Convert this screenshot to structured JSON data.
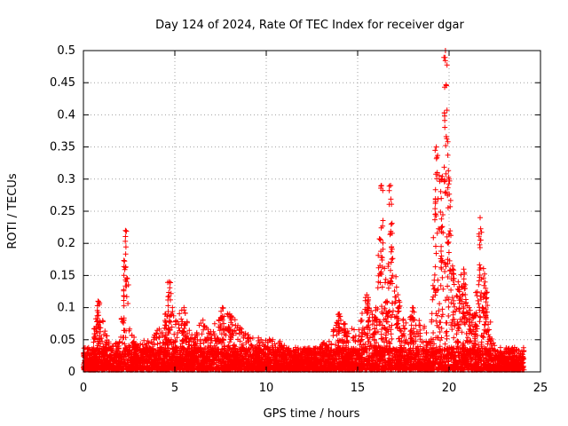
{
  "chart_data": {
    "type": "scatter",
    "title": "Day 124 of 2024, Rate Of TEC Index for receiver dgar",
    "xlabel": "GPS time / hours",
    "ylabel": "ROTI / TECUs",
    "xlim": [
      0,
      25
    ],
    "ylim": [
      0,
      0.5
    ],
    "xticks": [
      0,
      5,
      10,
      15,
      20,
      25
    ],
    "yticks": [
      0,
      0.05,
      0.1,
      0.15,
      0.2,
      0.25,
      0.3,
      0.35,
      0.4,
      0.45,
      0.5
    ],
    "grid": true,
    "marker": "+",
    "color": "#ff0000",
    "series": [
      {
        "name": "ROTI",
        "baseline_points_note": "dense baseline cloud generated from envelope below",
        "envelope": [
          [
            0.0,
            0.03
          ],
          [
            0.5,
            0.05
          ],
          [
            0.8,
            0.11
          ],
          [
            1.2,
            0.06
          ],
          [
            1.6,
            0.04
          ],
          [
            2.0,
            0.05
          ],
          [
            2.3,
            0.22
          ],
          [
            2.6,
            0.07
          ],
          [
            3.0,
            0.04
          ],
          [
            3.5,
            0.05
          ],
          [
            4.0,
            0.06
          ],
          [
            4.5,
            0.09
          ],
          [
            4.7,
            0.14
          ],
          [
            5.0,
            0.08
          ],
          [
            5.5,
            0.1
          ],
          [
            6.0,
            0.05
          ],
          [
            6.5,
            0.08
          ],
          [
            7.0,
            0.06
          ],
          [
            7.6,
            0.1
          ],
          [
            8.0,
            0.09
          ],
          [
            8.5,
            0.07
          ],
          [
            9.0,
            0.06
          ],
          [
            9.5,
            0.05
          ],
          [
            10.0,
            0.05
          ],
          [
            10.5,
            0.05
          ],
          [
            11.0,
            0.04
          ],
          [
            11.5,
            0.03
          ],
          [
            12.0,
            0.03
          ],
          [
            12.5,
            0.03
          ],
          [
            13.0,
            0.04
          ],
          [
            13.5,
            0.05
          ],
          [
            14.0,
            0.09
          ],
          [
            14.5,
            0.07
          ],
          [
            15.0,
            0.06
          ],
          [
            15.5,
            0.12
          ],
          [
            16.0,
            0.1
          ],
          [
            16.3,
            0.29
          ],
          [
            16.6,
            0.11
          ],
          [
            16.8,
            0.29
          ],
          [
            17.2,
            0.12
          ],
          [
            17.6,
            0.07
          ],
          [
            18.0,
            0.1
          ],
          [
            18.5,
            0.07
          ],
          [
            19.0,
            0.08
          ],
          [
            19.3,
            0.35
          ],
          [
            19.6,
            0.3
          ],
          [
            19.8,
            0.5
          ],
          [
            20.0,
            0.3
          ],
          [
            20.2,
            0.16
          ],
          [
            20.5,
            0.14
          ],
          [
            20.8,
            0.16
          ],
          [
            21.1,
            0.1
          ],
          [
            21.4,
            0.09
          ],
          [
            21.7,
            0.24
          ],
          [
            22.0,
            0.13
          ],
          [
            22.4,
            0.05
          ],
          [
            22.8,
            0.03
          ],
          [
            23.2,
            0.02
          ],
          [
            23.6,
            0.02
          ],
          [
            24.0,
            0.02
          ]
        ]
      }
    ]
  }
}
